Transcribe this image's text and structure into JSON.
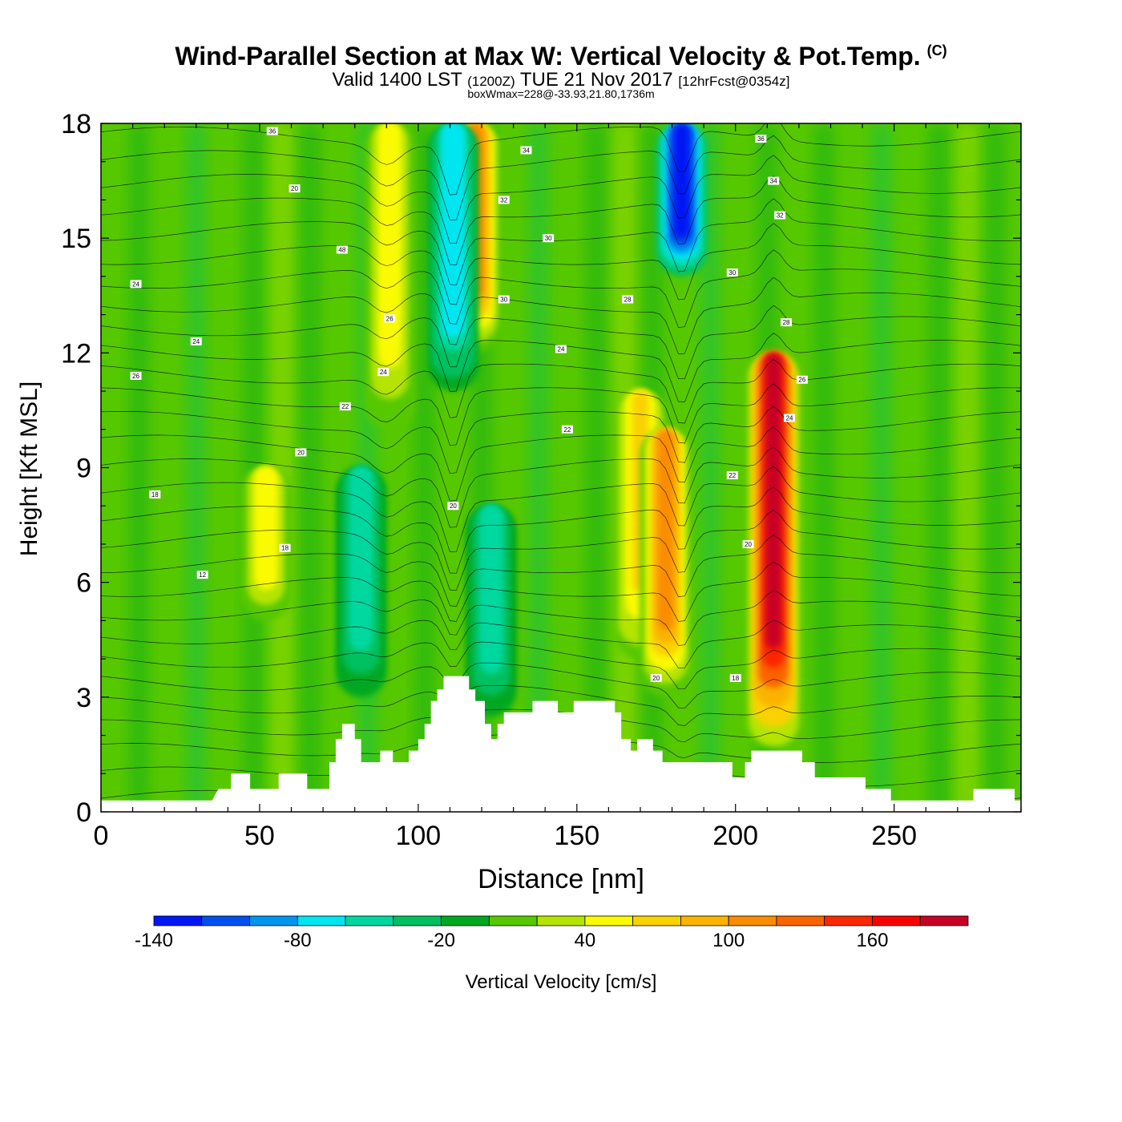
{
  "title": {
    "main": "Wind-Parallel Section at Max W: Vertical Velocity & Pot.Temp.",
    "copyright": "(C)",
    "valid_prefix": "Valid 1400 LST",
    "utc": "(1200Z)",
    "date": "TUE 21 Nov 2017",
    "fcst": "[12hrFcst@0354z]",
    "boxinfo": "boxWmax=228@-33.93,21.80,1736m"
  },
  "chart_data": {
    "type": "heatmap",
    "xlabel": "Distance [nm]",
    "ylabel": "Height [Kft MSL]",
    "xlim": [
      0,
      290
    ],
    "ylim": [
      0,
      18
    ],
    "x_ticks": [
      0,
      50,
      100,
      150,
      200,
      250
    ],
    "y_ticks": [
      0,
      3,
      6,
      9,
      12,
      15,
      18
    ],
    "colorbar": {
      "label": "Vertical Velocity [cm/s]",
      "range": [
        -140,
        200
      ],
      "tick_values": [
        -140,
        -80,
        -20,
        40,
        100,
        160
      ],
      "tick_labels": [
        "-140",
        "-80",
        "-20",
        "40",
        "100",
        "160"
      ],
      "colors": [
        "#0016f5",
        "#0050f0",
        "#0096f0",
        "#00e6f0",
        "#00d8a0",
        "#00c060",
        "#00a820",
        "#56c800",
        "#b4e400",
        "#fafa00",
        "#fad200",
        "#fab400",
        "#fa8c00",
        "#fa6400",
        "#fa2800",
        "#fa0000",
        "#c80028"
      ]
    },
    "terrain_kft": [
      [
        0,
        0.3
      ],
      [
        35,
        0.3
      ],
      [
        37,
        0.6
      ],
      [
        41,
        0.6
      ],
      [
        41,
        1.0
      ],
      [
        47,
        1.0
      ],
      [
        47,
        0.6
      ],
      [
        56,
        0.6
      ],
      [
        56,
        1.0
      ],
      [
        65,
        1.0
      ],
      [
        65,
        0.6
      ],
      [
        72,
        0.6
      ],
      [
        72,
        1.3
      ],
      [
        74,
        1.3
      ],
      [
        74,
        1.9
      ],
      [
        76,
        1.9
      ],
      [
        76,
        2.3
      ],
      [
        80,
        2.3
      ],
      [
        80,
        1.9
      ],
      [
        82,
        1.9
      ],
      [
        82,
        1.3
      ],
      [
        88,
        1.3
      ],
      [
        88,
        1.6
      ],
      [
        92,
        1.6
      ],
      [
        92,
        1.3
      ],
      [
        97,
        1.3
      ],
      [
        97,
        1.6
      ],
      [
        100,
        1.6
      ],
      [
        100,
        1.9
      ],
      [
        102,
        1.9
      ],
      [
        102,
        2.3
      ],
      [
        104,
        2.3
      ],
      [
        104,
        2.9
      ],
      [
        106,
        2.9
      ],
      [
        106,
        3.2
      ],
      [
        108,
        3.2
      ],
      [
        108,
        3.55
      ],
      [
        116,
        3.55
      ],
      [
        116,
        3.2
      ],
      [
        118,
        3.2
      ],
      [
        118,
        2.9
      ],
      [
        121,
        2.9
      ],
      [
        121,
        2.3
      ],
      [
        123,
        2.3
      ],
      [
        123,
        1.9
      ],
      [
        125,
        1.9
      ],
      [
        125,
        2.3
      ],
      [
        127,
        2.3
      ],
      [
        127,
        2.6
      ],
      [
        136,
        2.6
      ],
      [
        136,
        2.9
      ],
      [
        144,
        2.9
      ],
      [
        144,
        2.6
      ],
      [
        149,
        2.6
      ],
      [
        149,
        2.9
      ],
      [
        162,
        2.9
      ],
      [
        162,
        2.6
      ],
      [
        164,
        2.6
      ],
      [
        164,
        1.9
      ],
      [
        167,
        1.9
      ],
      [
        167,
        1.6
      ],
      [
        169,
        1.6
      ],
      [
        169,
        1.9
      ],
      [
        174,
        1.9
      ],
      [
        174,
        1.6
      ],
      [
        177,
        1.6
      ],
      [
        177,
        1.3
      ],
      [
        199,
        1.3
      ],
      [
        199,
        0.9
      ],
      [
        203,
        0.9
      ],
      [
        203,
        1.3
      ],
      [
        205,
        1.3
      ],
      [
        205,
        1.6
      ],
      [
        221,
        1.6
      ],
      [
        221,
        1.3
      ],
      [
        225,
        1.3
      ],
      [
        225,
        0.9
      ],
      [
        241,
        0.9
      ],
      [
        241,
        0.6
      ],
      [
        249,
        0.6
      ],
      [
        249,
        0.3
      ],
      [
        275,
        0.3
      ],
      [
        275,
        0.6
      ],
      [
        288,
        0.6
      ],
      [
        288,
        0.3
      ],
      [
        290,
        0.3
      ]
    ],
    "updraft_bands": [
      {
        "x": 118,
        "y_bottom": 12,
        "y_top": 18,
        "peak_cm_s": 110
      },
      {
        "x": 170,
        "y_bottom": 4,
        "y_top": 11,
        "peak_cm_s": 70
      },
      {
        "x": 178,
        "y_bottom": 3,
        "y_top": 10,
        "peak_cm_s": 100
      },
      {
        "x": 212,
        "y_bottom": 1.7,
        "y_top": 12,
        "peak_cm_s": 190
      },
      {
        "x": 91,
        "y_bottom": 10,
        "y_top": 18,
        "peak_cm_s": 50
      },
      {
        "x": 52,
        "y_bottom": 5,
        "y_top": 9,
        "peak_cm_s": 50
      }
    ],
    "downdraft_bands": [
      {
        "x": 111,
        "y_bottom": 11,
        "y_top": 18,
        "min_cm_s": -80
      },
      {
        "x": 183,
        "y_bottom": 14,
        "y_top": 18,
        "min_cm_s": -140
      },
      {
        "x": 82,
        "y_bottom": 3,
        "y_top": 9,
        "min_cm_s": -50
      },
      {
        "x": 123,
        "y_bottom": 2.5,
        "y_top": 8,
        "min_cm_s": -50
      }
    ],
    "isentrope_labels": [
      {
        "text": "36",
        "x": 54,
        "y": 17.8
      },
      {
        "text": "20",
        "x": 61,
        "y": 16.3
      },
      {
        "text": "48",
        "x": 76,
        "y": 14.7
      },
      {
        "text": "24",
        "x": 11,
        "y": 13.8
      },
      {
        "text": "26",
        "x": 91,
        "y": 12.9
      },
      {
        "text": "24",
        "x": 30,
        "y": 12.3
      },
      {
        "text": "26",
        "x": 11,
        "y": 11.4
      },
      {
        "text": "24",
        "x": 89,
        "y": 11.5
      },
      {
        "text": "22",
        "x": 77,
        "y": 10.6
      },
      {
        "text": "20",
        "x": 63,
        "y": 9.4
      },
      {
        "text": "18",
        "x": 17,
        "y": 8.3
      },
      {
        "text": "18",
        "x": 58,
        "y": 6.9
      },
      {
        "text": "12",
        "x": 32,
        "y": 6.2
      },
      {
        "text": "34",
        "x": 134,
        "y": 17.3
      },
      {
        "text": "32",
        "x": 127,
        "y": 16.0
      },
      {
        "text": "30",
        "x": 141,
        "y": 15.0
      },
      {
        "text": "30",
        "x": 127,
        "y": 13.4
      },
      {
        "text": "28",
        "x": 166,
        "y": 13.4
      },
      {
        "text": "24",
        "x": 145,
        "y": 12.1
      },
      {
        "text": "22",
        "x": 147,
        "y": 10.0
      },
      {
        "text": "20",
        "x": 111,
        "y": 8.0
      },
      {
        "text": "36",
        "x": 208,
        "y": 17.6
      },
      {
        "text": "34",
        "x": 212,
        "y": 16.5
      },
      {
        "text": "32",
        "x": 214,
        "y": 15.6
      },
      {
        "text": "30",
        "x": 199,
        "y": 14.1
      },
      {
        "text": "28",
        "x": 216,
        "y": 12.8
      },
      {
        "text": "26",
        "x": 221,
        "y": 11.3
      },
      {
        "text": "24",
        "x": 217,
        "y": 10.3
      },
      {
        "text": "22",
        "x": 199,
        "y": 8.8
      },
      {
        "text": "20",
        "x": 204,
        "y": 7.0
      },
      {
        "text": "20",
        "x": 175,
        "y": 3.5
      },
      {
        "text": "18",
        "x": 200,
        "y": 3.5
      }
    ]
  }
}
